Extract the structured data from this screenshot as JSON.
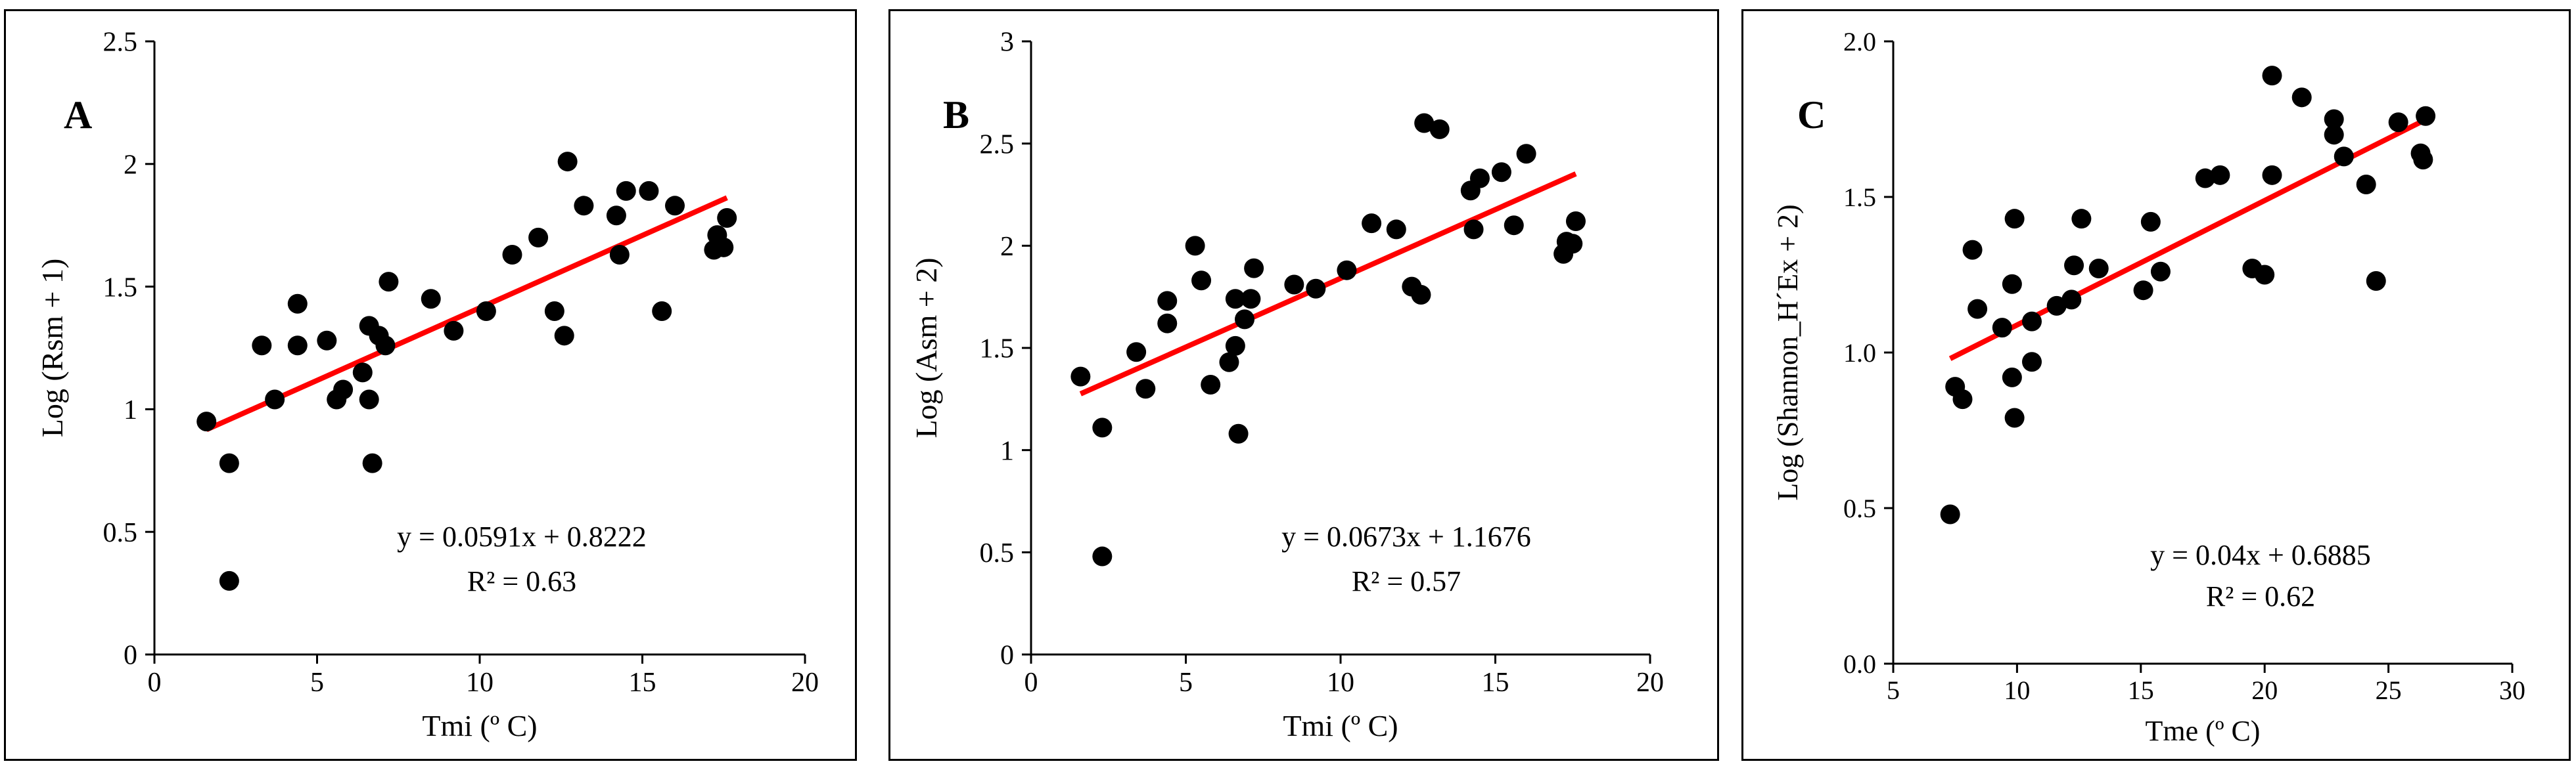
{
  "chart_data": [
    {
      "type": "scatter",
      "panel_label": "A",
      "title": "",
      "xlabel": "Tmi (º C)",
      "ylabel": "Log (Rsm + 1)",
      "xlim": [
        0,
        20
      ],
      "ylim": [
        0,
        2.5
      ],
      "xticks": [
        0,
        5,
        10,
        15,
        20
      ],
      "yticks": [
        0,
        0.5,
        1,
        1.5,
        2,
        2.5
      ],
      "xtick_labels": [
        "0",
        "5",
        "10",
        "15",
        "20"
      ],
      "ytick_labels": [
        "0",
        "0.5",
        "1",
        "1.5",
        "2",
        "2.5"
      ],
      "equation": "y = 0.0591x + 0.8222",
      "r2": "R² = 0.63",
      "trendline": {
        "slope": 0.0591,
        "intercept": 0.8222,
        "x_range": [
          1.6,
          17.6
        ],
        "color": "#ff0000"
      },
      "marker_color": "#000000",
      "points": [
        [
          1.6,
          0.95
        ],
        [
          2.3,
          0.78
        ],
        [
          2.3,
          0.3
        ],
        [
          3.3,
          1.26
        ],
        [
          3.7,
          1.04
        ],
        [
          4.4,
          1.43
        ],
        [
          4.4,
          1.26
        ],
        [
          5.3,
          1.28
        ],
        [
          5.6,
          1.04
        ],
        [
          5.8,
          1.08
        ],
        [
          6.4,
          1.15
        ],
        [
          6.6,
          1.34
        ],
        [
          6.6,
          1.04
        ],
        [
          6.7,
          0.78
        ],
        [
          6.9,
          1.3
        ],
        [
          7.1,
          1.26
        ],
        [
          7.2,
          1.52
        ],
        [
          8.5,
          1.45
        ],
        [
          9.2,
          1.32
        ],
        [
          10.2,
          1.4
        ],
        [
          11.0,
          1.63
        ],
        [
          11.8,
          1.7
        ],
        [
          12.3,
          1.4
        ],
        [
          12.6,
          1.3
        ],
        [
          12.7,
          2.01
        ],
        [
          13.2,
          1.83
        ],
        [
          14.2,
          1.79
        ],
        [
          14.3,
          1.63
        ],
        [
          14.5,
          1.89
        ],
        [
          15.2,
          1.89
        ],
        [
          15.6,
          1.4
        ],
        [
          16.0,
          1.83
        ],
        [
          17.2,
          1.65
        ],
        [
          17.3,
          1.71
        ],
        [
          17.5,
          1.66
        ],
        [
          17.6,
          1.78
        ]
      ]
    },
    {
      "type": "scatter",
      "panel_label": "B",
      "title": "",
      "xlabel": "Tmi (º C)",
      "ylabel": "Log (Asm + 2)",
      "xlim": [
        0,
        20
      ],
      "ylim": [
        0,
        3
      ],
      "xticks": [
        0,
        5,
        10,
        15,
        20
      ],
      "yticks": [
        0,
        0.5,
        1,
        1.5,
        2,
        2.5,
        3
      ],
      "xtick_labels": [
        "0",
        "5",
        "10",
        "15",
        "20"
      ],
      "ytick_labels": [
        "0",
        "0.5",
        "1",
        "1.5",
        "2",
        "2.5",
        "3"
      ],
      "equation": "y = 0.0673x + 1.1676",
      "r2": "R² = 0.57",
      "trendline": {
        "slope": 0.0673,
        "intercept": 1.1676,
        "x_range": [
          1.6,
          17.6
        ],
        "color": "#ff0000"
      },
      "marker_color": "#000000",
      "points": [
        [
          1.6,
          1.36
        ],
        [
          2.3,
          1.11
        ],
        [
          2.3,
          0.48
        ],
        [
          3.4,
          1.48
        ],
        [
          3.7,
          1.3
        ],
        [
          4.4,
          1.73
        ],
        [
          4.4,
          1.62
        ],
        [
          5.3,
          2.0
        ],
        [
          5.5,
          1.83
        ],
        [
          5.8,
          1.32
        ],
        [
          6.4,
          1.43
        ],
        [
          6.6,
          1.74
        ],
        [
          6.6,
          1.51
        ],
        [
          6.7,
          1.08
        ],
        [
          6.9,
          1.64
        ],
        [
          7.1,
          1.74
        ],
        [
          7.2,
          1.89
        ],
        [
          8.5,
          1.81
        ],
        [
          9.2,
          1.79
        ],
        [
          10.2,
          1.88
        ],
        [
          11.0,
          2.11
        ],
        [
          11.8,
          2.08
        ],
        [
          12.3,
          1.8
        ],
        [
          12.6,
          1.76
        ],
        [
          12.7,
          2.6
        ],
        [
          13.2,
          2.57
        ],
        [
          14.2,
          2.27
        ],
        [
          14.3,
          2.08
        ],
        [
          14.5,
          2.33
        ],
        [
          15.2,
          2.36
        ],
        [
          15.6,
          2.1
        ],
        [
          16.0,
          2.45
        ],
        [
          17.2,
          1.96
        ],
        [
          17.3,
          2.02
        ],
        [
          17.5,
          2.01
        ],
        [
          17.6,
          2.12
        ]
      ]
    },
    {
      "type": "scatter",
      "panel_label": "C",
      "title": "",
      "xlabel": "Tme (º C)",
      "ylabel": "Log (Shannon_H´Ex + 2)",
      "xlim": [
        5,
        30
      ],
      "ylim": [
        0,
        2
      ],
      "xticks": [
        5,
        10,
        15,
        20,
        25,
        30
      ],
      "yticks": [
        0,
        0.5,
        1,
        1.5,
        2
      ],
      "xtick_labels": [
        "5",
        "10",
        "15",
        "20",
        "25",
        "30"
      ],
      "ytick_labels": [
        "0.0",
        "0.5",
        "1.0",
        "1.5",
        "2.0"
      ],
      "equation": "y = 0.04x + 0.6885",
      "r2": "R² = 0.62",
      "trendline": {
        "slope": 0.04,
        "intercept": 0.6885,
        "x_range": [
          7.3,
          26.5
        ],
        "color": "#ff0000"
      },
      "marker_color": "#000000",
      "points": [
        [
          7.3,
          0.48
        ],
        [
          7.5,
          0.89
        ],
        [
          7.8,
          0.85
        ],
        [
          8.2,
          1.33
        ],
        [
          8.4,
          1.14
        ],
        [
          9.4,
          1.08
        ],
        [
          9.8,
          1.22
        ],
        [
          9.8,
          0.92
        ],
        [
          9.9,
          1.43
        ],
        [
          9.9,
          0.79
        ],
        [
          10.6,
          0.97
        ],
        [
          10.6,
          1.1
        ],
        [
          11.6,
          1.15
        ],
        [
          12.2,
          1.17
        ],
        [
          12.3,
          1.28
        ],
        [
          12.6,
          1.43
        ],
        [
          13.3,
          1.27
        ],
        [
          15.1,
          1.2
        ],
        [
          15.4,
          1.42
        ],
        [
          15.8,
          1.26
        ],
        [
          17.6,
          1.56
        ],
        [
          18.2,
          1.57
        ],
        [
          19.5,
          1.27
        ],
        [
          20.0,
          1.25
        ],
        [
          20.3,
          1.89
        ],
        [
          20.3,
          1.57
        ],
        [
          21.5,
          1.82
        ],
        [
          22.8,
          1.75
        ],
        [
          22.8,
          1.7
        ],
        [
          23.2,
          1.63
        ],
        [
          24.1,
          1.54
        ],
        [
          24.5,
          1.23
        ],
        [
          25.4,
          1.74
        ],
        [
          26.3,
          1.64
        ],
        [
          26.4,
          1.62
        ],
        [
          26.5,
          1.76
        ]
      ]
    }
  ]
}
